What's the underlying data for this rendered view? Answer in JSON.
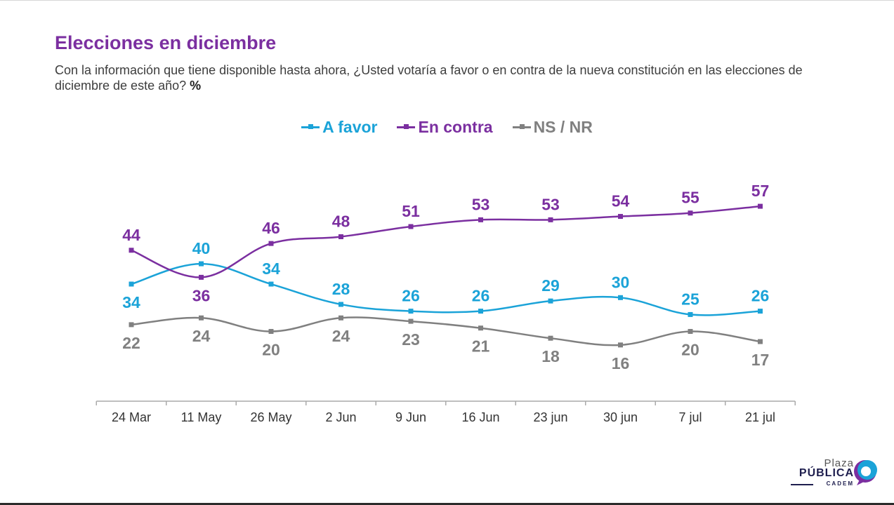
{
  "title": "Elecciones en diciembre",
  "subtitle": "Con la información que tiene disponible hasta ahora, ¿Usted votaría a favor o en contra de la nueva constitución en las elecciones de diciembre de este año?",
  "subtitle_unit": "%",
  "logo": {
    "plaza": "Plaza",
    "publica": "PÚBLICA",
    "cadem": "CADEM"
  },
  "colors": {
    "a_favor": "#1ba3d8",
    "en_contra": "#7b2fa0",
    "ns_nr": "#808080",
    "axis": "#aaaaaa",
    "title": "#7b2fa0"
  },
  "chart_data": {
    "type": "line",
    "categories": [
      "24 Mar",
      "11 May",
      "26 May",
      "2 Jun",
      "9 Jun",
      "16 Jun",
      "23 jun",
      "30 jun",
      "7 jul",
      "21 jul"
    ],
    "series": [
      {
        "name": "A favor",
        "color": "#1ba3d8",
        "values": [
          34,
          40,
          34,
          28,
          26,
          26,
          29,
          30,
          25,
          26
        ]
      },
      {
        "name": "En contra",
        "color": "#7b2fa0",
        "values": [
          44,
          36,
          46,
          48,
          51,
          53,
          53,
          54,
          55,
          57
        ]
      },
      {
        "name": "NS / NR",
        "color": "#808080",
        "values": [
          22,
          24,
          20,
          24,
          23,
          21,
          18,
          16,
          20,
          17
        ]
      }
    ],
    "legend_position": "top-center",
    "grid": false,
    "marker": "square",
    "smooth": true
  }
}
